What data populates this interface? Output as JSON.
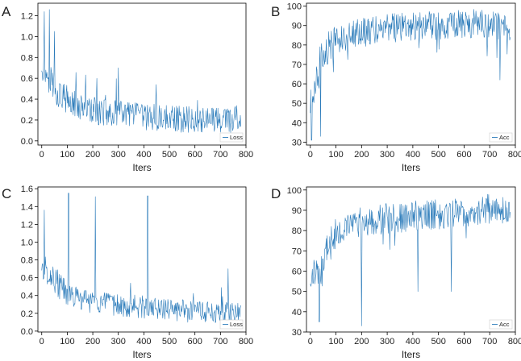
{
  "figure": {
    "line_color": "#2b7bba"
  },
  "chart_data": [
    {
      "panel": "A",
      "type": "line",
      "xlabel": "Iters",
      "ylabel": "",
      "xlim": [
        -15,
        800
      ],
      "ylim": [
        -0.04,
        1.32
      ],
      "xticks": [
        0,
        100,
        200,
        300,
        400,
        500,
        600,
        700,
        800
      ],
      "yticks": [
        0.0,
        0.2,
        0.4,
        0.6,
        0.8,
        1.0,
        1.2
      ],
      "ytick_labels": [
        "0.0",
        "0.2",
        "0.4",
        "0.6",
        "0.8",
        "1.0",
        "1.2"
      ],
      "legend": "bottom-right",
      "series": [
        {
          "name": "Loss",
          "x": [
            0,
            20,
            40,
            60,
            80,
            100,
            150,
            200,
            250,
            300,
            350,
            400,
            450,
            500,
            550,
            600,
            650,
            700,
            750,
            780
          ],
          "y": [
            0.74,
            0.64,
            0.57,
            0.48,
            0.42,
            0.38,
            0.33,
            0.29,
            0.27,
            0.26,
            0.25,
            0.23,
            0.22,
            0.22,
            0.21,
            0.21,
            0.21,
            0.2,
            0.2,
            0.2
          ],
          "spikes": [
            [
              10,
              1.24
            ],
            [
              30,
              1.26
            ],
            [
              50,
              1.05
            ],
            [
              300,
              0.7
            ]
          ]
        }
      ]
    },
    {
      "panel": "B",
      "type": "line",
      "xlabel": "Iters",
      "ylabel": "",
      "xlim": [
        -15,
        800
      ],
      "ylim": [
        28.5,
        101.5
      ],
      "xticks": [
        0,
        100,
        200,
        300,
        400,
        500,
        600,
        700,
        800
      ],
      "yticks": [
        30,
        40,
        50,
        60,
        70,
        80,
        90,
        100
      ],
      "ytick_labels": [
        "30",
        "40",
        "50",
        "60",
        "70",
        "80",
        "90",
        "100"
      ],
      "legend": "bottom-right",
      "series": [
        {
          "name": "Acc",
          "x": [
            0,
            20,
            40,
            60,
            80,
            100,
            150,
            200,
            250,
            300,
            350,
            400,
            450,
            500,
            550,
            600,
            650,
            700,
            750,
            780
          ],
          "y": [
            48,
            62,
            72,
            76,
            80,
            83,
            85,
            87,
            88,
            89,
            89,
            90,
            90,
            90,
            91,
            91,
            91,
            91,
            90,
            90
          ],
          "spikes": [
            [
              5,
              31
            ],
            [
              40,
              33
            ],
            [
              740,
              62
            ]
          ]
        }
      ]
    },
    {
      "panel": "C",
      "type": "line",
      "xlabel": "Iters",
      "ylabel": "",
      "xlim": [
        -15,
        800
      ],
      "ylim": [
        -0.01,
        1.62
      ],
      "xticks": [
        0,
        100,
        200,
        300,
        400,
        500,
        600,
        700,
        800
      ],
      "yticks": [
        0.0,
        0.2,
        0.4,
        0.6,
        0.8,
        1.0,
        1.2,
        1.4,
        1.6
      ],
      "ytick_labels": [
        "0.0",
        "0.2",
        "0.4",
        "0.6",
        "0.8",
        "1.0",
        "1.2",
        "1.4",
        "1.6"
      ],
      "legend": "bottom-right",
      "series": [
        {
          "name": "Loss",
          "x": [
            0,
            20,
            40,
            60,
            80,
            100,
            150,
            200,
            250,
            300,
            350,
            400,
            450,
            500,
            550,
            600,
            650,
            700,
            750,
            780
          ],
          "y": [
            0.72,
            0.68,
            0.62,
            0.55,
            0.47,
            0.42,
            0.36,
            0.33,
            0.3,
            0.29,
            0.28,
            0.27,
            0.25,
            0.24,
            0.23,
            0.22,
            0.21,
            0.2,
            0.2,
            0.2
          ],
          "spikes": [
            [
              10,
              1.36
            ],
            [
              105,
              1.55
            ],
            [
              210,
              1.51
            ],
            [
              415,
              1.52
            ],
            [
              730,
              0.7
            ]
          ]
        }
      ]
    },
    {
      "panel": "D",
      "type": "line",
      "xlabel": "Iters",
      "ylabel": "",
      "xlim": [
        -15,
        800
      ],
      "ylim": [
        30,
        101.5
      ],
      "xticks": [
        0,
        100,
        200,
        300,
        400,
        500,
        600,
        700,
        800
      ],
      "yticks": [
        30,
        40,
        50,
        60,
        70,
        80,
        90,
        100
      ],
      "ytick_labels": [
        "30",
        "40",
        "50",
        "60",
        "70",
        "80",
        "90",
        "100"
      ],
      "legend": "bottom-right",
      "series": [
        {
          "name": "Acc",
          "x": [
            0,
            20,
            40,
            60,
            80,
            100,
            150,
            200,
            250,
            300,
            350,
            400,
            450,
            500,
            550,
            600,
            650,
            700,
            750,
            780
          ],
          "y": [
            55,
            60,
            64,
            70,
            76,
            80,
            82,
            84,
            85,
            86,
            86,
            87,
            88,
            88,
            88,
            89,
            90,
            91,
            91,
            91
          ],
          "spikes": [
            [
              35,
              35
            ],
            [
              200,
              33
            ],
            [
              420,
              50
            ],
            [
              550,
              50
            ]
          ]
        }
      ]
    }
  ]
}
